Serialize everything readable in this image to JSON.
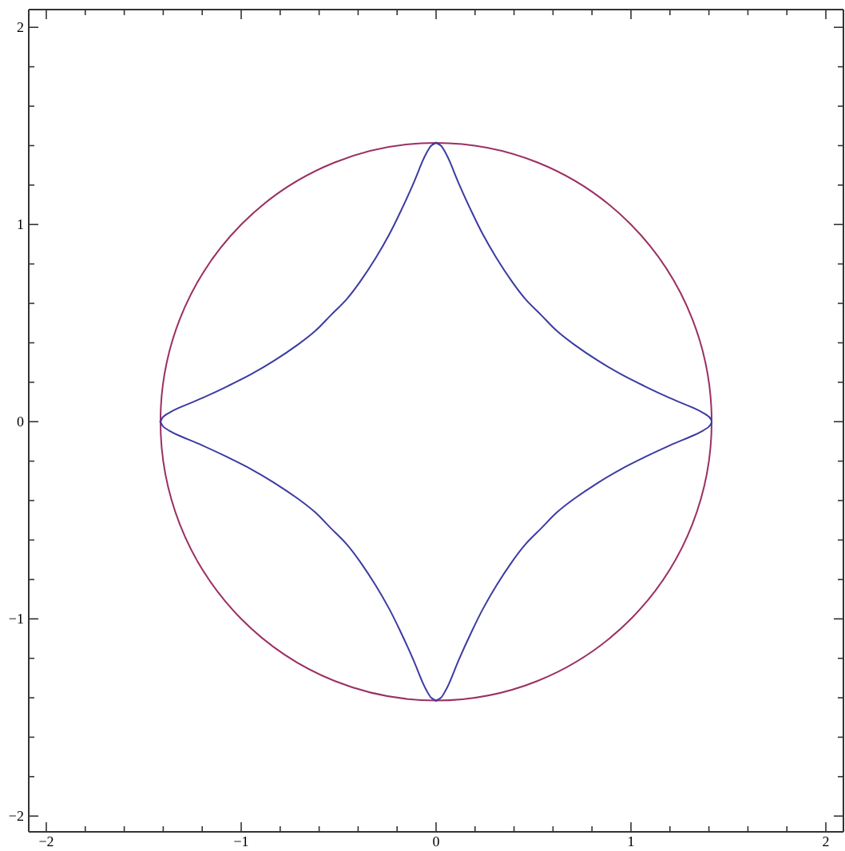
{
  "chart_data": {
    "type": "line",
    "xlim": [
      -2.09,
      2.09
    ],
    "ylim": [
      -2.08,
      2.09
    ],
    "xticks": [
      {
        "value": -2,
        "label": "−2"
      },
      {
        "value": -1.8,
        "label": null
      },
      {
        "value": -1.6,
        "label": null
      },
      {
        "value": -1.4,
        "label": null
      },
      {
        "value": -1.2,
        "label": null
      },
      {
        "value": -1,
        "label": "−1"
      },
      {
        "value": -0.8,
        "label": null
      },
      {
        "value": -0.6,
        "label": null
      },
      {
        "value": -0.4,
        "label": null
      },
      {
        "value": -0.2,
        "label": null
      },
      0,
      {
        "value": 0.2,
        "label": null
      },
      {
        "value": 0.4,
        "label": null
      },
      {
        "value": 0.6,
        "label": null
      },
      {
        "value": 0.8,
        "label": null
      },
      1,
      {
        "value": 1.2,
        "label": null
      },
      {
        "value": 1.4,
        "label": null
      },
      {
        "value": 1.6,
        "label": null
      },
      {
        "value": 1.8,
        "label": null
      },
      2
    ],
    "yticks": [
      {
        "value": -2,
        "label": "−2"
      },
      {
        "value": -1.8,
        "label": null
      },
      {
        "value": -1.6,
        "label": null
      },
      {
        "value": -1.4,
        "label": null
      },
      {
        "value": -1.2,
        "label": null
      },
      {
        "value": -1,
        "label": "−1"
      },
      {
        "value": -0.8,
        "label": null
      },
      {
        "value": -0.6,
        "label": null
      },
      {
        "value": -0.4,
        "label": null
      },
      {
        "value": -0.2,
        "label": null
      },
      0,
      {
        "value": 0.2,
        "label": null
      },
      {
        "value": 0.4,
        "label": null
      },
      {
        "value": 0.6,
        "label": null
      },
      {
        "value": 0.8,
        "label": null
      },
      1,
      {
        "value": 1.2,
        "label": null
      },
      {
        "value": 1.4,
        "label": null
      },
      {
        "value": 1.6,
        "label": null
      },
      {
        "value": 1.8,
        "label": null
      },
      2
    ]
  }
}
